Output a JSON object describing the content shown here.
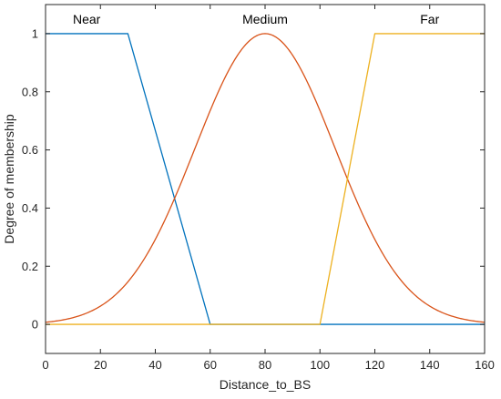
{
  "chart_data": {
    "type": "line",
    "title": "",
    "xlabel": "Distance_to_BS",
    "ylabel": "Degree of membership",
    "xlim": [
      0,
      160
    ],
    "ylim": [
      -0.1,
      1.1
    ],
    "xticks": [
      0,
      20,
      40,
      60,
      80,
      100,
      120,
      140,
      160
    ],
    "yticks": [
      0,
      0.2,
      0.4,
      0.6,
      0.8,
      1
    ],
    "grid": false,
    "legend": "none",
    "series": [
      {
        "name": "Near",
        "kind": "trapezoid",
        "color": "#0072BD",
        "x": [
          0,
          30,
          60,
          160
        ],
        "y": [
          1,
          1,
          0,
          0
        ]
      },
      {
        "name": "Medium",
        "kind": "gaussian",
        "color": "#D95319",
        "center": 80,
        "sigma": 25.5,
        "x": [
          0,
          10,
          20,
          30,
          40,
          50,
          60,
          70,
          80,
          90,
          100,
          110,
          120,
          130,
          140,
          150,
          160
        ],
        "y": [
          0.01,
          0.02,
          0.06,
          0.15,
          0.29,
          0.5,
          0.74,
          0.93,
          1.0,
          0.93,
          0.74,
          0.5,
          0.29,
          0.15,
          0.06,
          0.02,
          0.01
        ]
      },
      {
        "name": "Far",
        "kind": "trapezoid",
        "color": "#EDB120",
        "x": [
          0,
          100,
          120,
          160
        ],
        "y": [
          0,
          0,
          1,
          1
        ]
      }
    ],
    "annotations": [
      {
        "text": "Near",
        "x": 15,
        "y": 1.05
      },
      {
        "text": "Medium",
        "x": 80,
        "y": 1.05
      },
      {
        "text": "Far",
        "x": 140,
        "y": 1.05
      }
    ]
  }
}
